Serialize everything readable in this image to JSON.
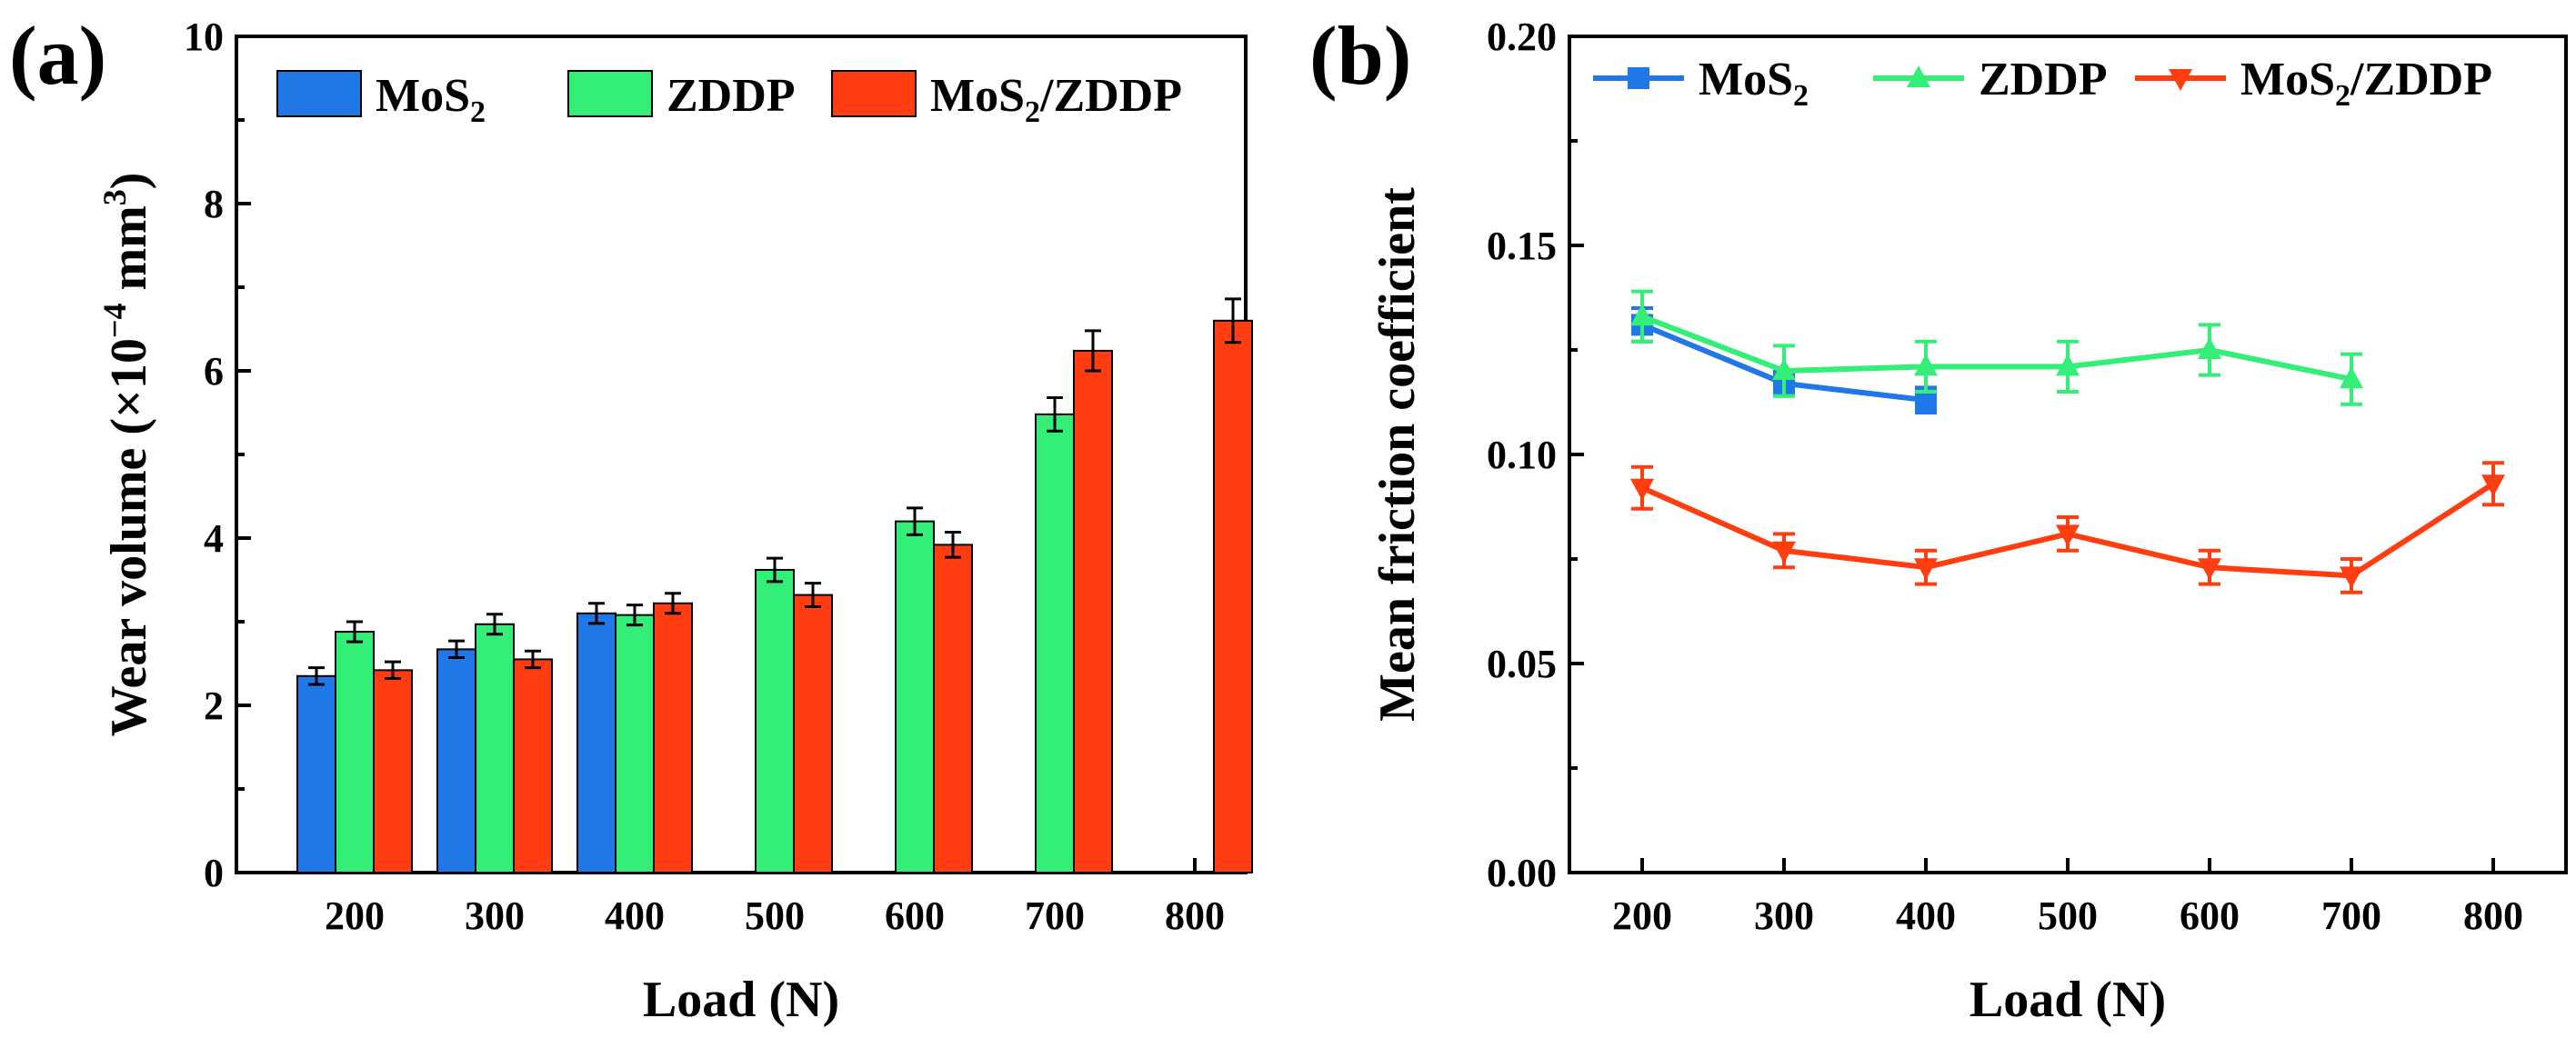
{
  "colors": {
    "mos2": "#1f77e8",
    "zddp": "#33ee77",
    "mixed": "#ff3d10",
    "axis": "#000000"
  },
  "chart_data": [
    {
      "panel_label": "(a)",
      "type": "bar",
      "categories": [
        "200",
        "300",
        "400",
        "500",
        "600",
        "700",
        "800"
      ],
      "xlabel": "Load (N)",
      "ylabel": {
        "main": "Wear volume (×10",
        "exp": "−4",
        "unit": " mm",
        "unit_exp": "3",
        "close": ")"
      },
      "ylim": [
        0,
        10
      ],
      "yticks": [
        "0",
        "2",
        "4",
        "6",
        "8",
        "10"
      ],
      "legend_position": "top",
      "legend": [
        {
          "key": "mos2",
          "label": "MoS",
          "sub": "2",
          "suffix": ""
        },
        {
          "key": "zddp",
          "label": "ZDDP",
          "sub": "",
          "suffix": ""
        },
        {
          "key": "mixed",
          "label": "MoS",
          "sub": "2",
          "suffix": "/ZDDP"
        }
      ],
      "series": [
        {
          "key": "mos2",
          "name": "MoS2",
          "values": [
            2.35,
            2.67,
            3.1,
            null,
            null,
            null,
            null
          ],
          "errors": [
            0.1,
            0.1,
            0.12,
            null,
            null,
            null,
            null
          ]
        },
        {
          "key": "zddp",
          "name": "ZDDP",
          "values": [
            2.88,
            2.97,
            3.08,
            3.62,
            4.2,
            5.48,
            null
          ],
          "errors": [
            0.12,
            0.12,
            0.12,
            0.14,
            0.16,
            0.2,
            null
          ]
        },
        {
          "key": "mixed",
          "name": "MoS2/ZDDP",
          "values": [
            2.42,
            2.55,
            3.22,
            3.32,
            3.92,
            6.24,
            6.6
          ],
          "errors": [
            0.1,
            0.1,
            0.12,
            0.14,
            0.15,
            0.24,
            0.26
          ]
        }
      ]
    },
    {
      "panel_label": "(b)",
      "type": "line",
      "x": [
        "200",
        "300",
        "400",
        "500",
        "600",
        "700",
        "800"
      ],
      "xlabel": "Load (N)",
      "ylabel": "Mean friction coefficient",
      "ylim": [
        0,
        0.2
      ],
      "yticks": [
        "0.00",
        "0.05",
        "0.10",
        "0.15",
        "0.20"
      ],
      "legend_position": "top",
      "legend": [
        {
          "key": "mos2",
          "label": "MoS",
          "sub": "2",
          "suffix": "",
          "marker": "square"
        },
        {
          "key": "zddp",
          "label": "ZDDP",
          "sub": "",
          "suffix": "",
          "marker": "triangle-up"
        },
        {
          "key": "mixed",
          "label": "MoS",
          "sub": "2",
          "suffix": "/ZDDP",
          "marker": "triangle-down"
        }
      ],
      "series": [
        {
          "key": "mos2",
          "name": "MoS2",
          "marker": "square",
          "values": [
            0.131,
            0.117,
            0.113,
            null,
            null,
            null,
            null
          ],
          "errors": [
            0.004,
            0.003,
            0.003,
            null,
            null,
            null,
            null
          ]
        },
        {
          "key": "zddp",
          "name": "ZDDP",
          "marker": "triangle-up",
          "values": [
            0.133,
            0.12,
            0.121,
            0.121,
            0.125,
            0.118,
            null
          ],
          "errors": [
            0.006,
            0.006,
            0.006,
            0.006,
            0.006,
            0.006,
            null
          ]
        },
        {
          "key": "mixed",
          "name": "MoS2/ZDDP",
          "marker": "triangle-down",
          "values": [
            0.092,
            0.077,
            0.073,
            0.081,
            0.073,
            0.071,
            0.093
          ],
          "errors": [
            0.005,
            0.004,
            0.004,
            0.004,
            0.004,
            0.004,
            0.005
          ]
        }
      ]
    }
  ]
}
